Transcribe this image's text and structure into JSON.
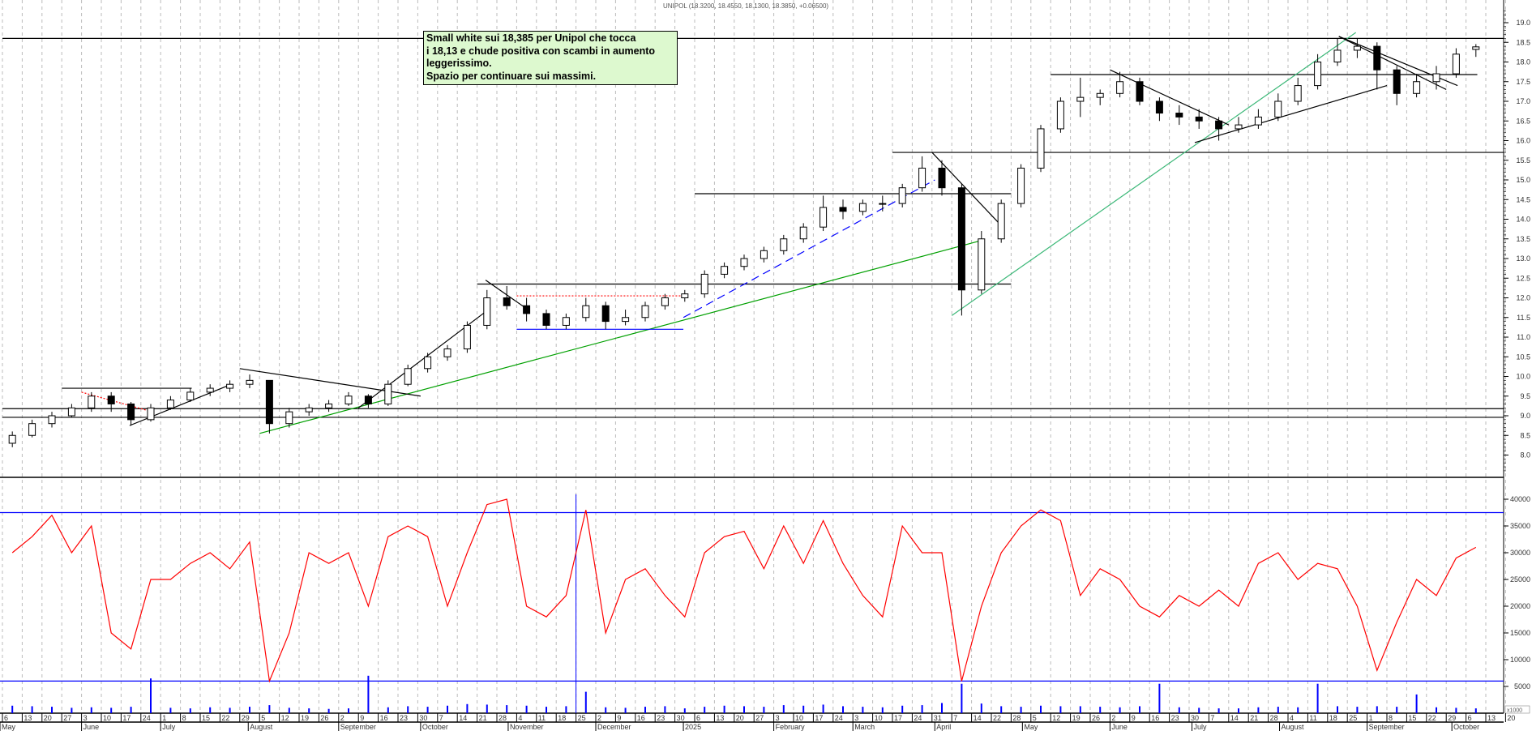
{
  "header": {
    "title": "UNIPOL (18.3200, 18.4550, 18.1300, 18.3850, +0.06500)"
  },
  "annotation": {
    "lines": [
      "Small white sui 18,385 per Unipol che tocca",
      "i 18,13 e chude positiva con scambi in aumento",
      "leggerissimo.",
      "Spazio per continuare sui massimi."
    ]
  },
  "colors": {
    "candle": "#000000",
    "oscillator": "#ff0000",
    "volume": "#0000ff",
    "levels": "#0000ff",
    "trend_green": "#00a000",
    "trend_teal": "#3cb878",
    "note_bg": "#ddf9cf",
    "grid": "#bbbbbb"
  },
  "chart_data": [
    {
      "type": "candlestick",
      "panel": "price",
      "resolution": "weekly (approximated from daily chart)",
      "ylim": [
        7.6,
        19.4
      ],
      "y_ticks": [
        "8.0",
        "8.5",
        "9.0",
        "9.5",
        "10.0",
        "10.5",
        "11.0",
        "11.5",
        "12.0",
        "12.5",
        "13.0",
        "13.5",
        "14.0",
        "14.5",
        "15.0",
        "15.5",
        "16.0",
        "16.5",
        "17.0",
        "17.5",
        "18.0",
        "18.5",
        "19.0"
      ],
      "grid": "vertical dashed weekly",
      "weeks_start": "2024-05-06",
      "ohlc": [
        [
          8.3,
          8.6,
          8.2,
          8.5
        ],
        [
          8.5,
          8.9,
          8.45,
          8.8
        ],
        [
          8.8,
          9.1,
          8.7,
          9.0
        ],
        [
          9.0,
          9.3,
          8.95,
          9.2
        ],
        [
          9.2,
          9.6,
          9.1,
          9.5
        ],
        [
          9.5,
          9.6,
          9.1,
          9.3
        ],
        [
          9.3,
          9.35,
          8.75,
          8.9
        ],
        [
          8.9,
          9.3,
          8.85,
          9.2
        ],
        [
          9.2,
          9.5,
          9.15,
          9.4
        ],
        [
          9.4,
          9.7,
          9.35,
          9.6
        ],
        [
          9.6,
          9.8,
          9.5,
          9.7
        ],
        [
          9.7,
          9.9,
          9.6,
          9.8
        ],
        [
          9.8,
          10.05,
          9.7,
          9.9
        ],
        [
          9.9,
          9.9,
          8.55,
          8.8
        ],
        [
          8.8,
          9.2,
          8.7,
          9.1
        ],
        [
          9.1,
          9.3,
          9.0,
          9.2
        ],
        [
          9.2,
          9.4,
          9.1,
          9.3
        ],
        [
          9.3,
          9.6,
          9.25,
          9.5
        ],
        [
          9.5,
          9.55,
          9.2,
          9.3
        ],
        [
          9.3,
          9.9,
          9.25,
          9.8
        ],
        [
          9.8,
          10.3,
          9.75,
          10.2
        ],
        [
          10.2,
          10.6,
          10.1,
          10.5
        ],
        [
          10.5,
          10.8,
          10.4,
          10.7
        ],
        [
          10.7,
          11.4,
          10.6,
          11.3
        ],
        [
          11.3,
          12.2,
          11.2,
          12.0
        ],
        [
          12.0,
          12.3,
          11.7,
          11.8
        ],
        [
          11.8,
          12.0,
          11.4,
          11.6
        ],
        [
          11.6,
          11.7,
          11.2,
          11.3
        ],
        [
          11.3,
          11.6,
          11.2,
          11.5
        ],
        [
          11.5,
          12.0,
          11.4,
          11.8
        ],
        [
          11.8,
          11.9,
          11.2,
          11.4
        ],
        [
          11.4,
          11.7,
          11.3,
          11.5
        ],
        [
          11.5,
          11.9,
          11.4,
          11.8
        ],
        [
          11.8,
          12.1,
          11.7,
          12.0
        ],
        [
          12.0,
          12.2,
          11.9,
          12.1
        ],
        [
          12.1,
          12.7,
          12.0,
          12.6
        ],
        [
          12.6,
          12.9,
          12.5,
          12.8
        ],
        [
          12.8,
          13.1,
          12.7,
          13.0
        ],
        [
          13.0,
          13.3,
          12.9,
          13.2
        ],
        [
          13.2,
          13.6,
          13.1,
          13.5
        ],
        [
          13.5,
          13.9,
          13.4,
          13.8
        ],
        [
          13.8,
          14.6,
          13.7,
          14.3
        ],
        [
          14.3,
          14.5,
          14.0,
          14.2
        ],
        [
          14.2,
          14.5,
          14.1,
          14.4
        ],
        [
          14.4,
          14.6,
          14.2,
          14.4
        ],
        [
          14.4,
          14.9,
          14.3,
          14.8
        ],
        [
          14.8,
          15.6,
          14.7,
          15.3
        ],
        [
          15.3,
          15.5,
          14.6,
          14.8
        ],
        [
          14.8,
          14.9,
          11.55,
          12.2
        ],
        [
          12.2,
          13.7,
          12.1,
          13.5
        ],
        [
          13.5,
          14.5,
          13.4,
          14.4
        ],
        [
          14.4,
          15.4,
          14.3,
          15.3
        ],
        [
          15.3,
          16.4,
          15.2,
          16.3
        ],
        [
          16.3,
          17.1,
          16.2,
          17.0
        ],
        [
          17.0,
          17.6,
          16.6,
          17.1
        ],
        [
          17.1,
          17.3,
          16.9,
          17.2
        ],
        [
          17.2,
          17.75,
          17.1,
          17.5
        ],
        [
          17.5,
          17.6,
          16.9,
          17.0
        ],
        [
          17.0,
          17.1,
          16.5,
          16.7
        ],
        [
          16.7,
          16.9,
          16.4,
          16.6
        ],
        [
          16.6,
          16.8,
          16.3,
          16.5
        ],
        [
          16.5,
          16.6,
          16.0,
          16.3
        ],
        [
          16.3,
          16.6,
          16.2,
          16.4
        ],
        [
          16.4,
          16.8,
          16.3,
          16.6
        ],
        [
          16.6,
          17.2,
          16.5,
          17.0
        ],
        [
          17.0,
          17.6,
          16.9,
          17.4
        ],
        [
          17.4,
          18.2,
          17.3,
          18.0
        ],
        [
          18.0,
          18.6,
          17.9,
          18.3
        ],
        [
          18.3,
          18.6,
          18.1,
          18.4
        ],
        [
          18.4,
          18.5,
          17.3,
          17.8
        ],
        [
          17.8,
          17.9,
          16.9,
          17.2
        ],
        [
          17.2,
          17.7,
          17.1,
          17.5
        ],
        [
          17.5,
          17.9,
          17.3,
          17.7
        ],
        [
          17.7,
          18.35,
          17.6,
          18.2
        ],
        [
          18.32,
          18.455,
          18.13,
          18.385
        ]
      ],
      "horizontal_levels": [
        {
          "price": 18.6,
          "from": "2024-05-06",
          "to": "2025-10-20"
        },
        {
          "price": 17.68,
          "from": "2025-05-12",
          "to": "2025-10-10"
        },
        {
          "price": 15.7,
          "from": "2025-03-17",
          "to": "2025-10-20"
        },
        {
          "price": 14.65,
          "from": "2025-01-06",
          "to": "2025-04-28"
        },
        {
          "price": 12.35,
          "from": "2024-10-21",
          "to": "2025-04-28"
        },
        {
          "price": 9.7,
          "from": "2024-05-27",
          "to": "2024-07-12"
        },
        {
          "price": 9.18,
          "from": "2024-05-06",
          "to": "2025-10-20"
        },
        {
          "price": 8.96,
          "from": "2024-05-06",
          "to": "2025-10-20"
        }
      ],
      "trend_lines": [
        {
          "style": "green",
          "p1": [
            "2024-08-05",
            8.55
          ],
          "p2": [
            "2025-04-17",
            13.45
          ]
        },
        {
          "style": "teal",
          "p1": [
            "2025-04-07",
            11.55
          ],
          "p2": [
            "2025-08-28",
            18.75
          ]
        },
        {
          "style": "black",
          "p1": [
            "2024-06-20",
            8.75
          ],
          "p2": [
            "2024-07-26",
            9.8
          ]
        },
        {
          "style": "black",
          "p1": [
            "2024-07-29",
            10.2
          ],
          "p2": [
            "2024-10-01",
            9.5
          ]
        },
        {
          "style": "black",
          "p1": [
            "2024-09-09",
            9.2
          ],
          "p2": [
            "2024-10-25",
            11.7
          ]
        },
        {
          "style": "black",
          "p1": [
            "2024-10-24",
            12.45
          ],
          "p2": [
            "2024-11-08",
            11.7
          ]
        },
        {
          "style": "black",
          "p1": [
            "2025-03-31",
            15.7
          ],
          "p2": [
            "2025-04-25",
            13.8
          ]
        },
        {
          "style": "black",
          "p1": [
            "2025-06-02",
            17.8
          ],
          "p2": [
            "2025-07-14",
            16.4
          ]
        },
        {
          "style": "black",
          "p1": [
            "2025-07-02",
            15.95
          ],
          "p2": [
            "2025-09-08",
            17.4
          ]
        },
        {
          "style": "black",
          "p1": [
            "2025-08-22",
            18.65
          ],
          "p2": [
            "2025-09-29",
            17.3
          ]
        },
        {
          "style": "black",
          "p1": [
            "2025-08-22",
            18.65
          ],
          "p2": [
            "2025-10-03",
            17.4
          ]
        },
        {
          "style": "blue-dashed",
          "p1": [
            "2025-01-02",
            11.5
          ],
          "p2": [
            "2025-04-01",
            15.0
          ]
        },
        {
          "style": "blue",
          "p1": [
            "2024-11-04",
            11.2
          ],
          "p2": [
            "2025-01-02",
            11.2
          ]
        },
        {
          "style": "red-dotted",
          "p1": [
            "2024-11-04",
            12.05
          ],
          "p2": [
            "2025-01-02",
            12.05
          ]
        },
        {
          "style": "red-dotted",
          "p1": [
            "2024-06-03",
            9.6
          ],
          "p2": [
            "2024-06-28",
            9.1
          ]
        }
      ]
    },
    {
      "type": "line",
      "panel": "lower",
      "name": "",
      "ylim": [
        0,
        44000
      ],
      "y_ticks": [
        "5000",
        "10000",
        "15000",
        "20000",
        "25000",
        "30000",
        "35000",
        "40000"
      ],
      "unit_label": "x1000",
      "reference_levels": [
        37500,
        6000
      ],
      "vertical_marker": "2024-11-25",
      "oscillator": [
        30000,
        33000,
        37000,
        30000,
        35000,
        15000,
        12000,
        25000,
        25000,
        28000,
        30000,
        27000,
        32000,
        6000,
        15000,
        30000,
        28000,
        30000,
        20000,
        33000,
        35000,
        33000,
        20000,
        30000,
        39000,
        40000,
        20000,
        18000,
        22000,
        38000,
        15000,
        25000,
        27000,
        22000,
        18000,
        30000,
        33000,
        34000,
        27000,
        35000,
        28000,
        36000,
        28000,
        22000,
        18000,
        35000,
        30000,
        30000,
        6000,
        20000,
        30000,
        35000,
        38000,
        36000,
        22000,
        27000,
        25000,
        20000,
        18000,
        22000,
        20000,
        23000,
        20000,
        28000,
        30000,
        25000,
        28000,
        27000,
        20000,
        8000,
        17000,
        25000,
        22000,
        29000,
        31000
      ],
      "volume": [
        1400,
        1300,
        1200,
        1000,
        1100,
        1000,
        1200,
        6500,
        1000,
        900,
        1100,
        1000,
        1200,
        1500,
        1000,
        900,
        800,
        900,
        7000,
        1100,
        1300,
        1200,
        1400,
        1700,
        1600,
        1500,
        1400,
        1200,
        1300,
        4000,
        1100,
        1000,
        1200,
        1300,
        900,
        1200,
        1400,
        1300,
        1200,
        1500,
        1400,
        1600,
        1300,
        1200,
        1100,
        1400,
        1500,
        1900,
        5500,
        1800,
        1300,
        1200,
        1400,
        1300,
        1300,
        1200,
        1100,
        1300,
        5500,
        1100,
        1000,
        900,
        900,
        1100,
        1200,
        1100,
        5500,
        1300,
        1200,
        1300,
        1200,
        3500,
        1100,
        1000,
        900
      ]
    }
  ],
  "x_axis": {
    "tick_labels": [
      "6",
      "13",
      "20",
      "27",
      "3",
      "10",
      "17",
      "24",
      "1",
      "8",
      "15",
      "22",
      "29",
      "5",
      "12",
      "19",
      "26",
      "2",
      "9",
      "16",
      "23",
      "30",
      "7",
      "14",
      "21",
      "28",
      "4",
      "11",
      "18",
      "25",
      "2",
      "9",
      "16",
      "23",
      "30",
      "6",
      "13",
      "20",
      "27",
      "3",
      "10",
      "17",
      "24",
      "3",
      "10",
      "17",
      "24",
      "31",
      "7",
      "14",
      "22",
      "28",
      "5",
      "12",
      "19",
      "26",
      "2",
      "9",
      "16",
      "23",
      "30",
      "7",
      "14",
      "21",
      "28",
      "4",
      "11",
      "18",
      "25",
      "1",
      "8",
      "15",
      "22",
      "29",
      "6",
      "13",
      "20"
    ],
    "months": [
      {
        "label": "May",
        "date": "2024-05-01"
      },
      {
        "label": "June",
        "date": "2024-06-03"
      },
      {
        "label": "July",
        "date": "2024-07-01"
      },
      {
        "label": "August",
        "date": "2024-08-01"
      },
      {
        "label": "September",
        "date": "2024-09-02"
      },
      {
        "label": "October",
        "date": "2024-10-01"
      },
      {
        "label": "November",
        "date": "2024-11-01"
      },
      {
        "label": "December",
        "date": "2024-12-02"
      },
      {
        "label": "2025",
        "date": "2025-01-02"
      },
      {
        "label": "February",
        "date": "2025-02-03"
      },
      {
        "label": "March",
        "date": "2025-03-03"
      },
      {
        "label": "April",
        "date": "2025-04-01"
      },
      {
        "label": "May",
        "date": "2025-05-02"
      },
      {
        "label": "June",
        "date": "2025-06-02"
      },
      {
        "label": "July",
        "date": "2025-07-01"
      },
      {
        "label": "August",
        "date": "2025-08-01"
      },
      {
        "label": "September",
        "date": "2025-09-01"
      },
      {
        "label": "October",
        "date": "2025-10-01"
      }
    ]
  }
}
